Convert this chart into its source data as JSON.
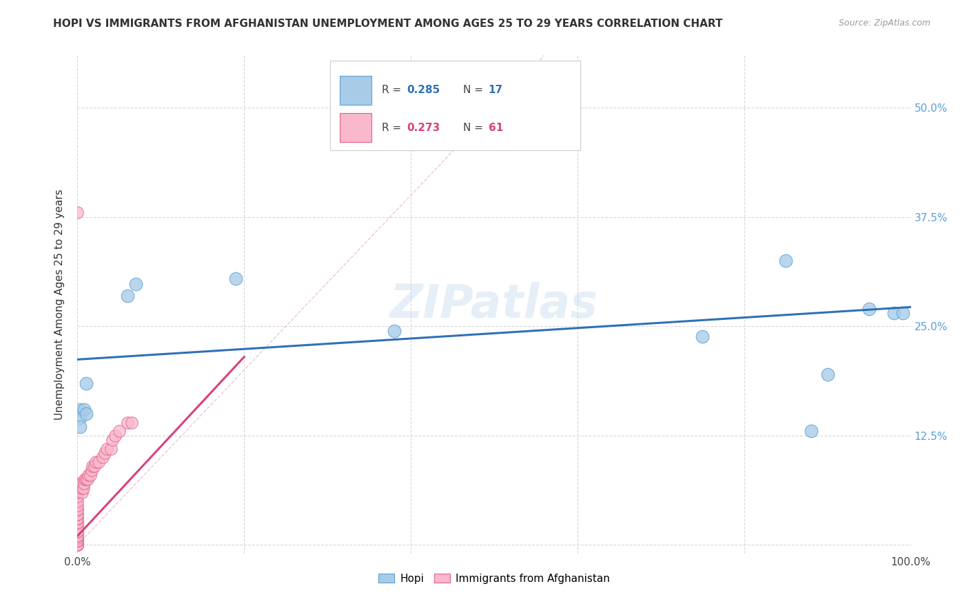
{
  "title": "HOPI VS IMMIGRANTS FROM AFGHANISTAN UNEMPLOYMENT AMONG AGES 25 TO 29 YEARS CORRELATION CHART",
  "source": "Source: ZipAtlas.com",
  "ylabel": "Unemployment Among Ages 25 to 29 years",
  "xlim": [
    0,
    1.0
  ],
  "ylim": [
    -0.01,
    0.56
  ],
  "hopi_R": 0.285,
  "hopi_N": 17,
  "afghan_R": 0.273,
  "afghan_N": 61,
  "hopi_color": "#a8cce8",
  "afghan_color": "#f9b8cb",
  "hopi_edge_color": "#5a9fd4",
  "afghan_edge_color": "#e0608a",
  "hopi_trend_color": "#3070b8",
  "afghan_trend_color": "#d94080",
  "diagonal_color": "#e8b0c0",
  "watermark": "ZIPatlas",
  "background_color": "#ffffff",
  "grid_color": "#d8d8d8",
  "hopi_scatter_x": [
    0.003,
    0.003,
    0.003,
    0.008,
    0.01,
    0.01,
    0.06,
    0.07,
    0.19,
    0.38,
    0.75,
    0.85,
    0.88,
    0.9,
    0.95,
    0.98,
    0.99
  ],
  "hopi_scatter_y": [
    0.155,
    0.145,
    0.135,
    0.155,
    0.185,
    0.15,
    0.285,
    0.298,
    0.305,
    0.245,
    0.238,
    0.325,
    0.13,
    0.195,
    0.27,
    0.265,
    0.265
  ],
  "afghan_scatter_x": [
    0.0,
    0.0,
    0.0,
    0.0,
    0.0,
    0.0,
    0.0,
    0.0,
    0.0,
    0.0,
    0.0,
    0.0,
    0.0,
    0.0,
    0.0,
    0.0,
    0.0,
    0.0,
    0.0,
    0.0,
    0.0,
    0.0,
    0.0,
    0.0,
    0.0,
    0.0,
    0.0,
    0.0,
    0.0,
    0.0,
    0.0,
    0.0,
    0.0,
    0.0,
    0.0,
    0.0,
    0.0,
    0.005,
    0.005,
    0.005,
    0.007,
    0.008,
    0.009,
    0.01,
    0.012,
    0.013,
    0.015,
    0.017,
    0.018,
    0.02,
    0.022,
    0.025,
    0.03,
    0.033,
    0.035,
    0.04,
    0.042,
    0.045,
    0.05,
    0.06,
    0.065
  ],
  "afghan_scatter_y": [
    0.0,
    0.0,
    0.0,
    0.0,
    0.0,
    0.0,
    0.0,
    0.0,
    0.0,
    0.0,
    0.0,
    0.005,
    0.005,
    0.005,
    0.008,
    0.01,
    0.01,
    0.01,
    0.015,
    0.015,
    0.02,
    0.02,
    0.025,
    0.025,
    0.03,
    0.03,
    0.035,
    0.035,
    0.04,
    0.04,
    0.045,
    0.05,
    0.055,
    0.06,
    0.065,
    0.07,
    0.38,
    0.06,
    0.065,
    0.07,
    0.065,
    0.07,
    0.075,
    0.075,
    0.075,
    0.08,
    0.08,
    0.085,
    0.09,
    0.09,
    0.095,
    0.095,
    0.1,
    0.105,
    0.11,
    0.11,
    0.12,
    0.125,
    0.13,
    0.14,
    0.14
  ]
}
